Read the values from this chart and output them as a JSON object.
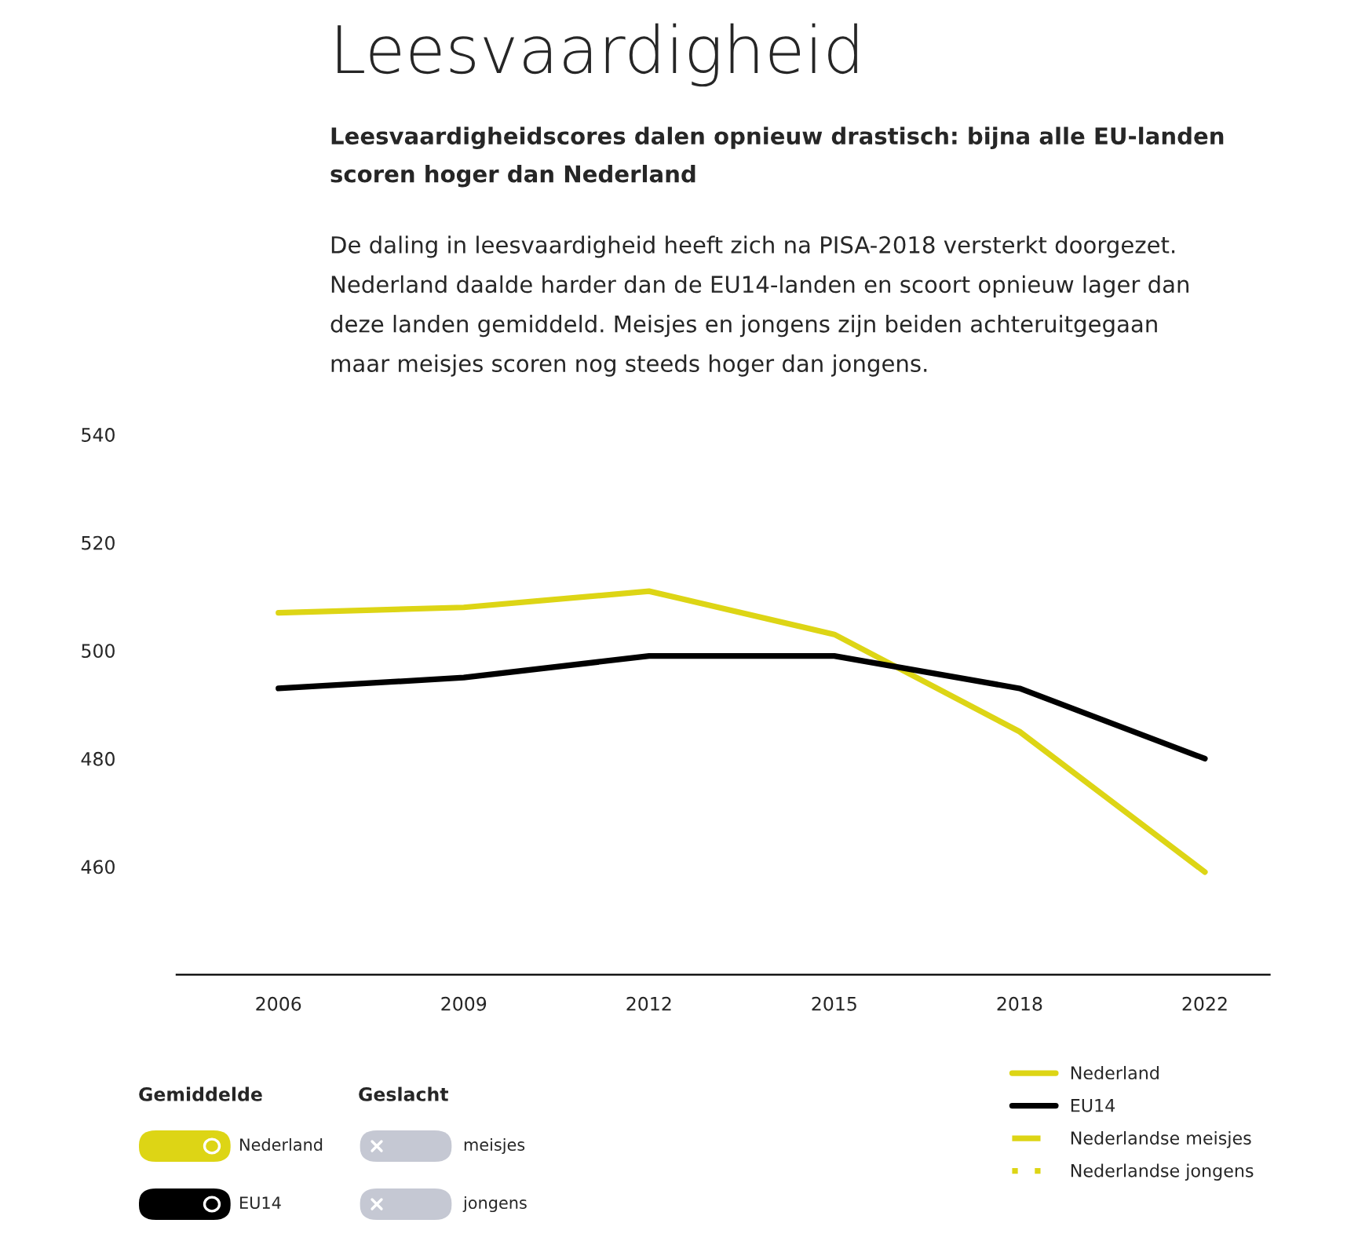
{
  "chart_data": {
    "type": "line",
    "title": "Leesvaardigheid",
    "subtitle": "Leesvaardigheidscores dalen opnieuw drastisch: bijna alle EU-landen\nscoren hoger dan Nederland",
    "annotations": [
      "De daling in leesvaardigheid heeft zich na PISA-2018 versterkt doorgezet.\nNederland daalde harder dan de EU14-landen en scoort opnieuw lager dan\ndeze landen gemiddeld. Meisjes en jongens zijn beiden achteruitgegaan\nmaar meisjes scoren nog steeds hoger dan jongens.",
      "Gemiddelde",
      "Nederland",
      "EU14",
      "Geslacht",
      "meisjes",
      "jongens"
    ],
    "categories": [
      "2006",
      "2009",
      "2012",
      "2015",
      "2018",
      "2022"
    ],
    "series": [
      {
        "name": "Nederland",
        "color": "#ddd515",
        "values": [
          507,
          508,
          511,
          503,
          485,
          459
        ]
      },
      {
        "name": "EU14",
        "color": "#000000",
        "values": [
          493,
          495,
          499,
          499,
          493,
          480
        ]
      },
      {
        "name": "Nederlandse meisjes",
        "color": "#ddd515",
        "line_style": "dashed",
        "values": [
          null,
          null,
          null,
          null,
          null,
          null
        ]
      },
      {
        "name": "Nederlandse jongens",
        "color": "#ddd515",
        "line_style": "dotted",
        "values": [
          null,
          null,
          null,
          null,
          null,
          null
        ]
      }
    ],
    "ylim": [
      440,
      540
    ],
    "yticks": [
      460,
      480,
      500,
      520,
      540
    ],
    "grid": false,
    "legend": "bottom right"
  }
}
